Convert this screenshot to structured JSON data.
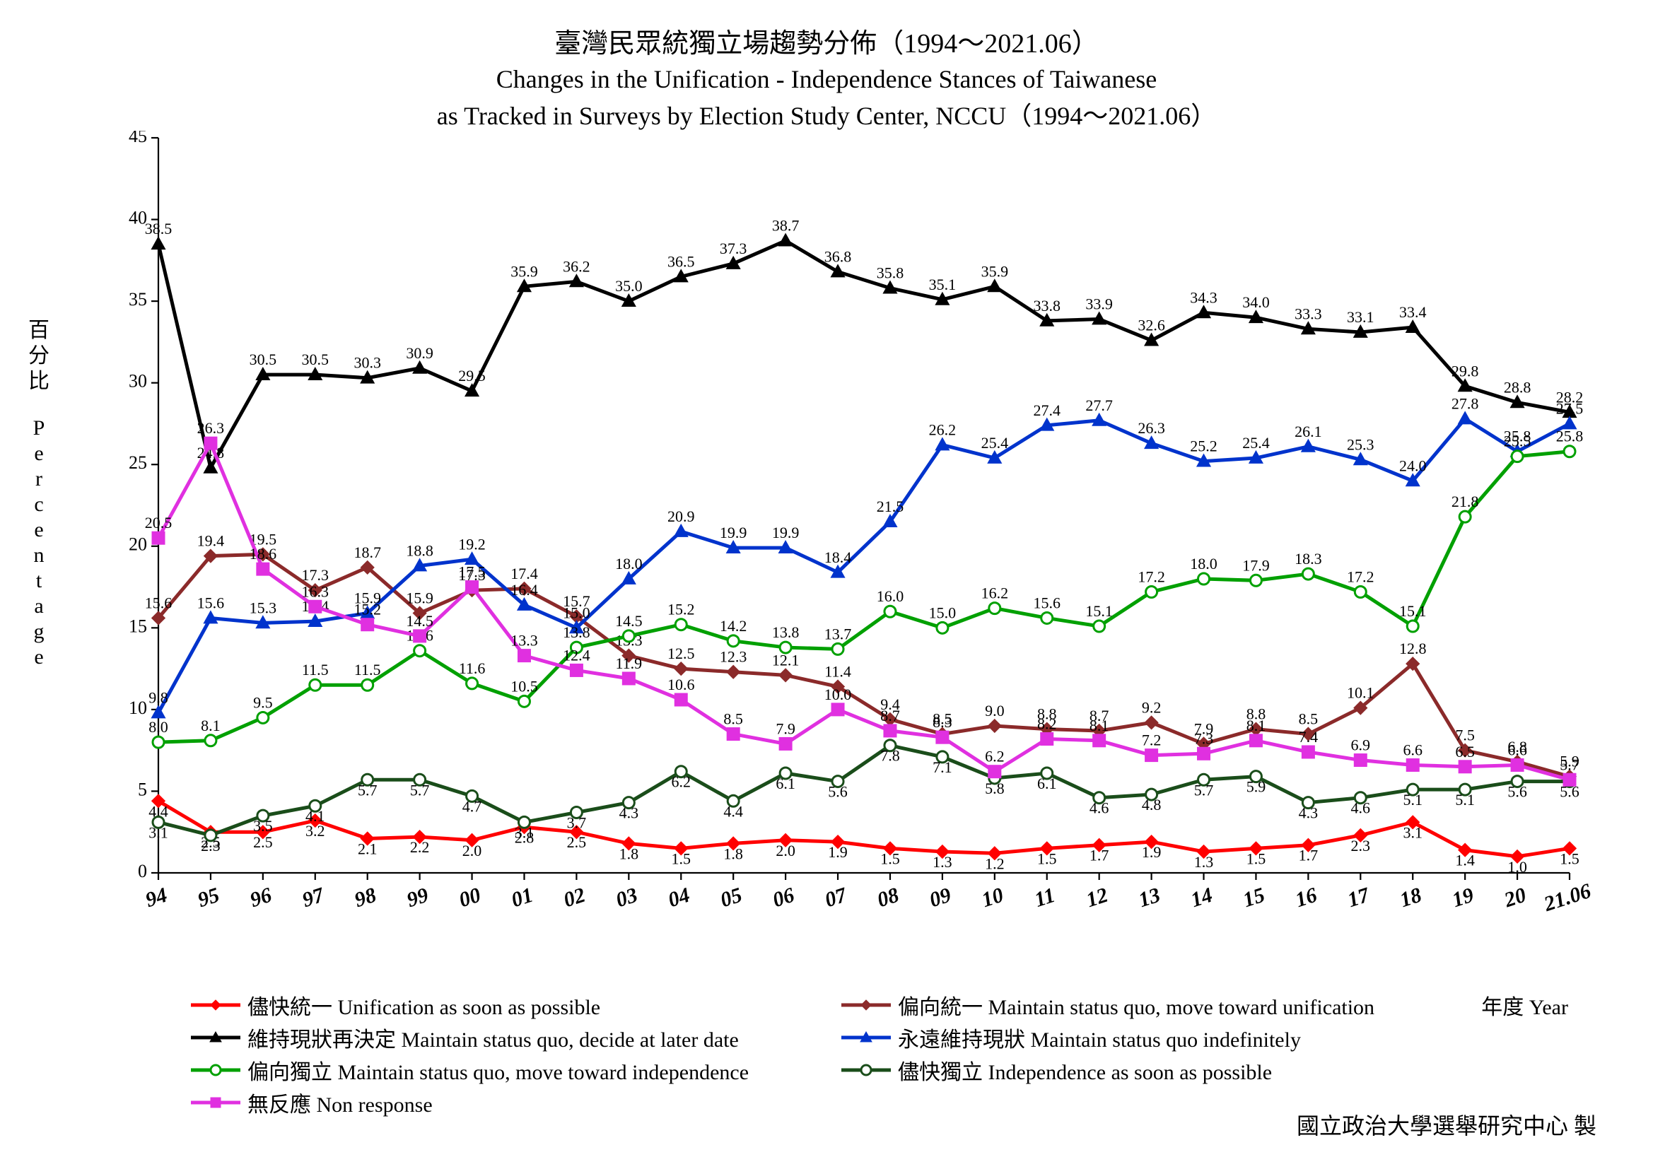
{
  "titles": {
    "line1": "臺灣民眾統獨立場趨勢分佈（1994～2021.06）",
    "line2": "Changes in the Unification - Independence Stances of Taiwanese",
    "line3": "as Tracked in Surveys by Election Study Center, NCCU（1994～2021.06）"
  },
  "ylabel_cn": "百分比",
  "ylabel_en": "Percentage",
  "xlabel": "年度 Year",
  "footer": "國立政治大學選舉研究中心 製",
  "chart": {
    "type": "line",
    "background_color": "#ffffff",
    "xlim": [
      0,
      27
    ],
    "ylim": [
      0,
      45
    ],
    "ytick_step": 5,
    "x_categories": [
      "94",
      "95",
      "96",
      "97",
      "98",
      "99",
      "00",
      "01",
      "02",
      "03",
      "04",
      "05",
      "06",
      "07",
      "08",
      "09",
      "10",
      "11",
      "12",
      "13",
      "14",
      "15",
      "16",
      "17",
      "18",
      "19",
      "20",
      "21.06"
    ],
    "yticks": [
      0,
      5,
      10,
      15,
      20,
      25,
      30,
      35,
      40,
      45
    ],
    "axis_color": "#000000",
    "label_fontsize": 22,
    "tick_fontsize": 26,
    "line_width": 5,
    "marker_size": 8
  },
  "series": [
    {
      "key": "unify_asap",
      "label": "儘快統一 Unification as soon as possible",
      "color": "#ff0000",
      "marker": "diamond-filled",
      "values": [
        4.4,
        2.5,
        2.5,
        3.2,
        2.1,
        2.2,
        2.0,
        2.8,
        2.5,
        1.8,
        1.5,
        1.8,
        2.0,
        1.9,
        1.5,
        1.3,
        1.2,
        1.5,
        1.7,
        1.9,
        1.3,
        1.5,
        1.7,
        2.3,
        3.1,
        1.4,
        1.0,
        1.5
      ]
    },
    {
      "key": "sq_unify",
      "label": "偏向統一 Maintain status quo, move toward unification",
      "color": "#8b2a2a",
      "marker": "diamond-filled",
      "values": [
        15.6,
        19.4,
        19.5,
        17.3,
        18.7,
        15.9,
        17.3,
        17.4,
        15.7,
        13.3,
        12.5,
        12.3,
        12.1,
        11.4,
        9.4,
        8.5,
        9.0,
        8.8,
        8.7,
        9.2,
        7.9,
        8.8,
        8.5,
        10.1,
        12.8,
        7.5,
        6.8,
        5.9
      ]
    },
    {
      "key": "sq_later",
      "label": "維持現狀再決定 Maintain status quo, decide at later date",
      "color": "#000000",
      "marker": "triangle-filled",
      "values": [
        38.5,
        24.8,
        30.5,
        30.5,
        30.3,
        30.9,
        29.5,
        35.9,
        36.2,
        35.0,
        36.5,
        37.3,
        38.7,
        36.8,
        35.8,
        35.1,
        35.9,
        33.8,
        33.9,
        32.6,
        34.3,
        34.0,
        33.3,
        33.1,
        33.4,
        29.8,
        28.8,
        28.2
      ]
    },
    {
      "key": "sq_indef",
      "label": "永遠維持現狀 Maintain status quo indefinitely",
      "color": "#0033cc",
      "marker": "triangle-filled",
      "values": [
        9.8,
        15.6,
        15.3,
        15.4,
        15.9,
        18.8,
        19.2,
        16.4,
        15.0,
        18.0,
        20.9,
        19.9,
        19.9,
        18.4,
        21.5,
        26.2,
        25.4,
        27.4,
        27.7,
        26.3,
        25.2,
        25.4,
        26.1,
        25.3,
        24.0,
        27.8,
        25.8,
        27.5
      ]
    },
    {
      "key": "sq_indep",
      "label": "偏向獨立 Maintain status quo, move toward independence",
      "color": "#00a000",
      "marker": "circle-open",
      "values": [
        8.0,
        8.1,
        9.5,
        11.5,
        11.5,
        13.6,
        11.6,
        10.5,
        13.8,
        14.5,
        15.2,
        14.2,
        13.8,
        13.7,
        16.0,
        15.0,
        16.2,
        15.6,
        15.1,
        17.2,
        18.0,
        17.9,
        18.3,
        17.2,
        15.1,
        21.8,
        25.5,
        25.8
      ]
    },
    {
      "key": "indep_asap",
      "label": "儘快獨立 Independence as soon as possible",
      "color": "#1a4d1a",
      "marker": "circle-open",
      "values": [
        3.1,
        2.3,
        3.5,
        4.1,
        5.7,
        5.7,
        4.7,
        3.1,
        3.7,
        4.3,
        6.2,
        4.4,
        6.1,
        5.6,
        7.8,
        7.1,
        5.8,
        6.1,
        4.6,
        4.8,
        5.7,
        5.9,
        4.3,
        4.6,
        5.1,
        5.1,
        5.6,
        5.6
      ]
    },
    {
      "key": "nonresp",
      "label": "無反應 Non response",
      "color": "#e030e0",
      "marker": "square-filled",
      "values": [
        20.5,
        26.3,
        18.6,
        16.3,
        15.2,
        14.5,
        17.5,
        13.3,
        12.4,
        11.9,
        10.6,
        8.5,
        7.9,
        10.0,
        8.7,
        8.3,
        6.2,
        8.2,
        8.1,
        7.2,
        7.3,
        8.1,
        7.4,
        6.9,
        6.6,
        6.5,
        6.6,
        5.7
      ]
    }
  ]
}
